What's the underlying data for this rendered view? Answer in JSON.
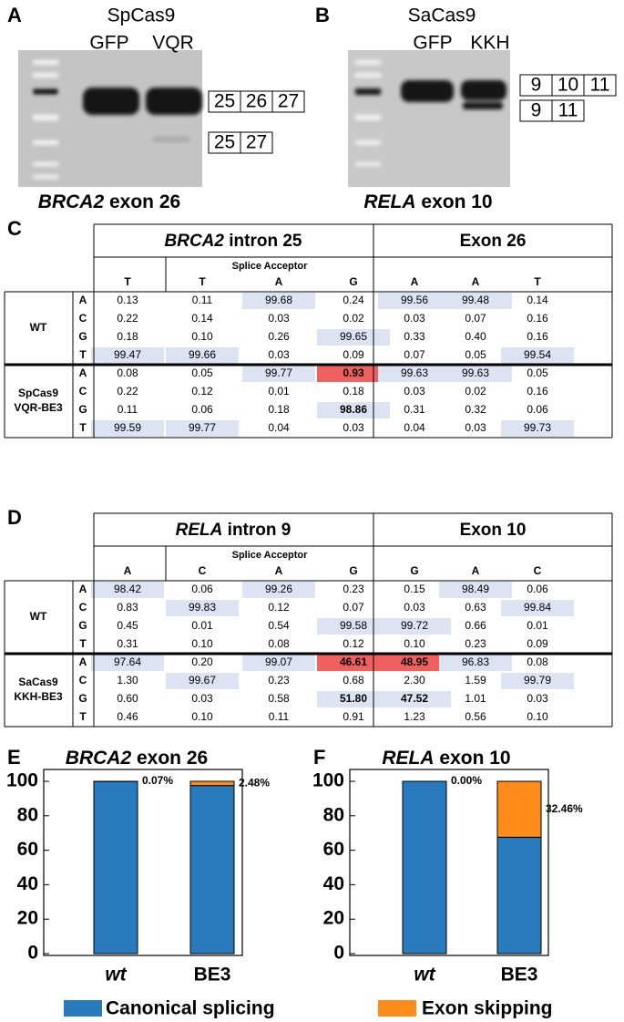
{
  "panels": {
    "a": {
      "label": "A",
      "enzyme": "SpCas9",
      "lanes": [
        "GFP",
        "VQR"
      ],
      "exons": [
        [
          "25",
          "26",
          "27"
        ],
        [
          "25",
          "27"
        ]
      ],
      "caption": {
        "gene": "BRCA2",
        "rest": "exon 26"
      }
    },
    "b": {
      "label": "B",
      "enzyme": "SaCas9",
      "lanes": [
        "GFP",
        "KKH"
      ],
      "exons": [
        [
          "9",
          "10",
          "11"
        ],
        [
          "9",
          "11"
        ]
      ],
      "caption": {
        "gene": "RELA",
        "rest": "exon 10"
      }
    }
  },
  "tables": [
    {
      "label": "C",
      "gene": "BRCA2",
      "region": "intron 25",
      "exon": "Exon 26",
      "acceptor": "Splice Acceptor",
      "bases": [
        "T",
        "T",
        "A",
        "G",
        "A",
        "A",
        "T"
      ],
      "accent_base": 3,
      "accent_color": "#c00000",
      "groups": [
        {
          "name": [
            "WT"
          ],
          "rows": [
            {
              "base": "A",
              "values": [
                "0.13",
                "0.11",
                "99.68",
                "0.24",
                "99.56",
                "99.48",
                "0.14"
              ]
            },
            {
              "base": "C",
              "values": [
                "0.22",
                "0.14",
                "0.03",
                "0.02",
                "0.03",
                "0.07",
                "0.16"
              ]
            },
            {
              "base": "G",
              "values": [
                "0.18",
                "0.10",
                "0.26",
                "99.65",
                "0.33",
                "0.40",
                "0.16"
              ]
            },
            {
              "base": "T",
              "values": [
                "99.47",
                "99.66",
                "0.03",
                "0.09",
                "0.07",
                "0.05",
                "99.54"
              ]
            }
          ]
        },
        {
          "name": [
            "SpCas9",
            "VQR-BE3"
          ],
          "rows": [
            {
              "base": "A",
              "values": [
                "0.08",
                "0.05",
                "99.77",
                "0.93",
                "99.63",
                "99.63",
                "0.05"
              ]
            },
            {
              "base": "C",
              "values": [
                "0.22",
                "0.12",
                "0.01",
                "0.18",
                "0.03",
                "0.02",
                "0.16"
              ]
            },
            {
              "base": "G",
              "values": [
                "0.11",
                "0.06",
                "0.18",
                "98.86",
                "0.31",
                "0.32",
                "0.06"
              ]
            },
            {
              "base": "T",
              "values": [
                "99.59",
                "99.77",
                "0.04",
                "0.03",
                "0.04",
                "0.03",
                "99.73"
              ]
            }
          ]
        }
      ],
      "highlight": {
        "blue": [
          [
            0,
            2
          ],
          [
            0,
            4
          ],
          [
            0,
            5
          ],
          [
            2,
            3
          ],
          [
            3,
            0
          ],
          [
            3,
            1
          ],
          [
            3,
            6
          ],
          [
            4,
            2
          ],
          [
            4,
            4
          ],
          [
            4,
            5
          ],
          [
            6,
            3
          ],
          [
            7,
            0
          ],
          [
            7,
            1
          ],
          [
            7,
            6
          ]
        ],
        "red": [
          [
            4,
            3
          ]
        ],
        "bold": [
          [
            4,
            3
          ],
          [
            6,
            3
          ]
        ]
      }
    },
    {
      "label": "D",
      "gene": "RELA",
      "region": "intron 9",
      "exon": "Exon 10",
      "acceptor": "Splice Acceptor",
      "bases": [
        "A",
        "C",
        "A",
        "G",
        "G",
        "A",
        "C"
      ],
      "accent_base": 3,
      "accent_color": "#c00000",
      "groups": [
        {
          "name": [
            "WT"
          ],
          "rows": [
            {
              "base": "A",
              "values": [
                "98.42",
                "0.06",
                "99.26",
                "0.23",
                "0.15",
                "98.49",
                "0.06"
              ]
            },
            {
              "base": "C",
              "values": [
                "0.83",
                "99.83",
                "0.12",
                "0.07",
                "0.03",
                "0.63",
                "99.84"
              ]
            },
            {
              "base": "G",
              "values": [
                "0.45",
                "0.01",
                "0.54",
                "99.58",
                "99.72",
                "0.66",
                "0.01"
              ]
            },
            {
              "base": "T",
              "values": [
                "0.31",
                "0.10",
                "0.08",
                "0.12",
                "0.10",
                "0.23",
                "0.09"
              ]
            }
          ]
        },
        {
          "name": [
            "SaCas9",
            "KKH-BE3"
          ],
          "rows": [
            {
              "base": "A",
              "values": [
                "97.64",
                "0.20",
                "99.07",
                "46.61",
                "48.95",
                "96.83",
                "0.08"
              ]
            },
            {
              "base": "C",
              "values": [
                "1.30",
                "99.67",
                "0.23",
                "0.68",
                "2.30",
                "1.59",
                "99.79"
              ]
            },
            {
              "base": "G",
              "values": [
                "0.60",
                "0.03",
                "0.58",
                "51.80",
                "47.52",
                "1.01",
                "0.03"
              ]
            },
            {
              "base": "T",
              "values": [
                "0.46",
                "0.10",
                "0.11",
                "0.91",
                "1.23",
                "0.56",
                "0.10"
              ]
            }
          ]
        }
      ],
      "highlight": {
        "blue": [
          [
            0,
            0
          ],
          [
            0,
            2
          ],
          [
            0,
            5
          ],
          [
            1,
            1
          ],
          [
            1,
            6
          ],
          [
            2,
            3
          ],
          [
            2,
            4
          ],
          [
            4,
            0
          ],
          [
            4,
            2
          ],
          [
            4,
            5
          ],
          [
            5,
            1
          ],
          [
            5,
            6
          ],
          [
            6,
            3
          ],
          [
            6,
            4
          ]
        ],
        "red": [
          [
            4,
            3
          ],
          [
            4,
            4
          ]
        ],
        "bold": [
          [
            4,
            3
          ],
          [
            4,
            4
          ],
          [
            6,
            3
          ],
          [
            6,
            4
          ]
        ]
      }
    }
  ],
  "chart_data": [
    {
      "type": "bar",
      "stacked": true,
      "label": "E",
      "title": {
        "gene": "BRCA2",
        "rest": "exon 26"
      },
      "categories": [
        "wt",
        "BE3"
      ],
      "ylim": [
        0,
        100
      ],
      "yticks": [
        0,
        20,
        40,
        60,
        80,
        100
      ],
      "series": [
        {
          "name": "Canonical splicing",
          "color": "#2a7bbd",
          "values": [
            99.93,
            97.52
          ]
        },
        {
          "name": "Exon skipping",
          "color": "#ff8c1a",
          "values": [
            0.07,
            2.48
          ],
          "value_labels": [
            "0.07%",
            "2.48%"
          ]
        }
      ]
    },
    {
      "type": "bar",
      "stacked": true,
      "label": "F",
      "title": {
        "gene": "RELA",
        "rest": "exon 10"
      },
      "categories": [
        "wt",
        "BE3"
      ],
      "ylim": [
        0,
        100
      ],
      "yticks": [
        0,
        20,
        40,
        60,
        80,
        100
      ],
      "series": [
        {
          "name": "Canonical splicing",
          "color": "#2a7bbd",
          "values": [
            100,
            67.54
          ]
        },
        {
          "name": "Exon skipping",
          "color": "#ff8c1a",
          "values": [
            0,
            32.46
          ],
          "value_labels": [
            "0.00%",
            "32.46%"
          ]
        }
      ]
    }
  ]
}
